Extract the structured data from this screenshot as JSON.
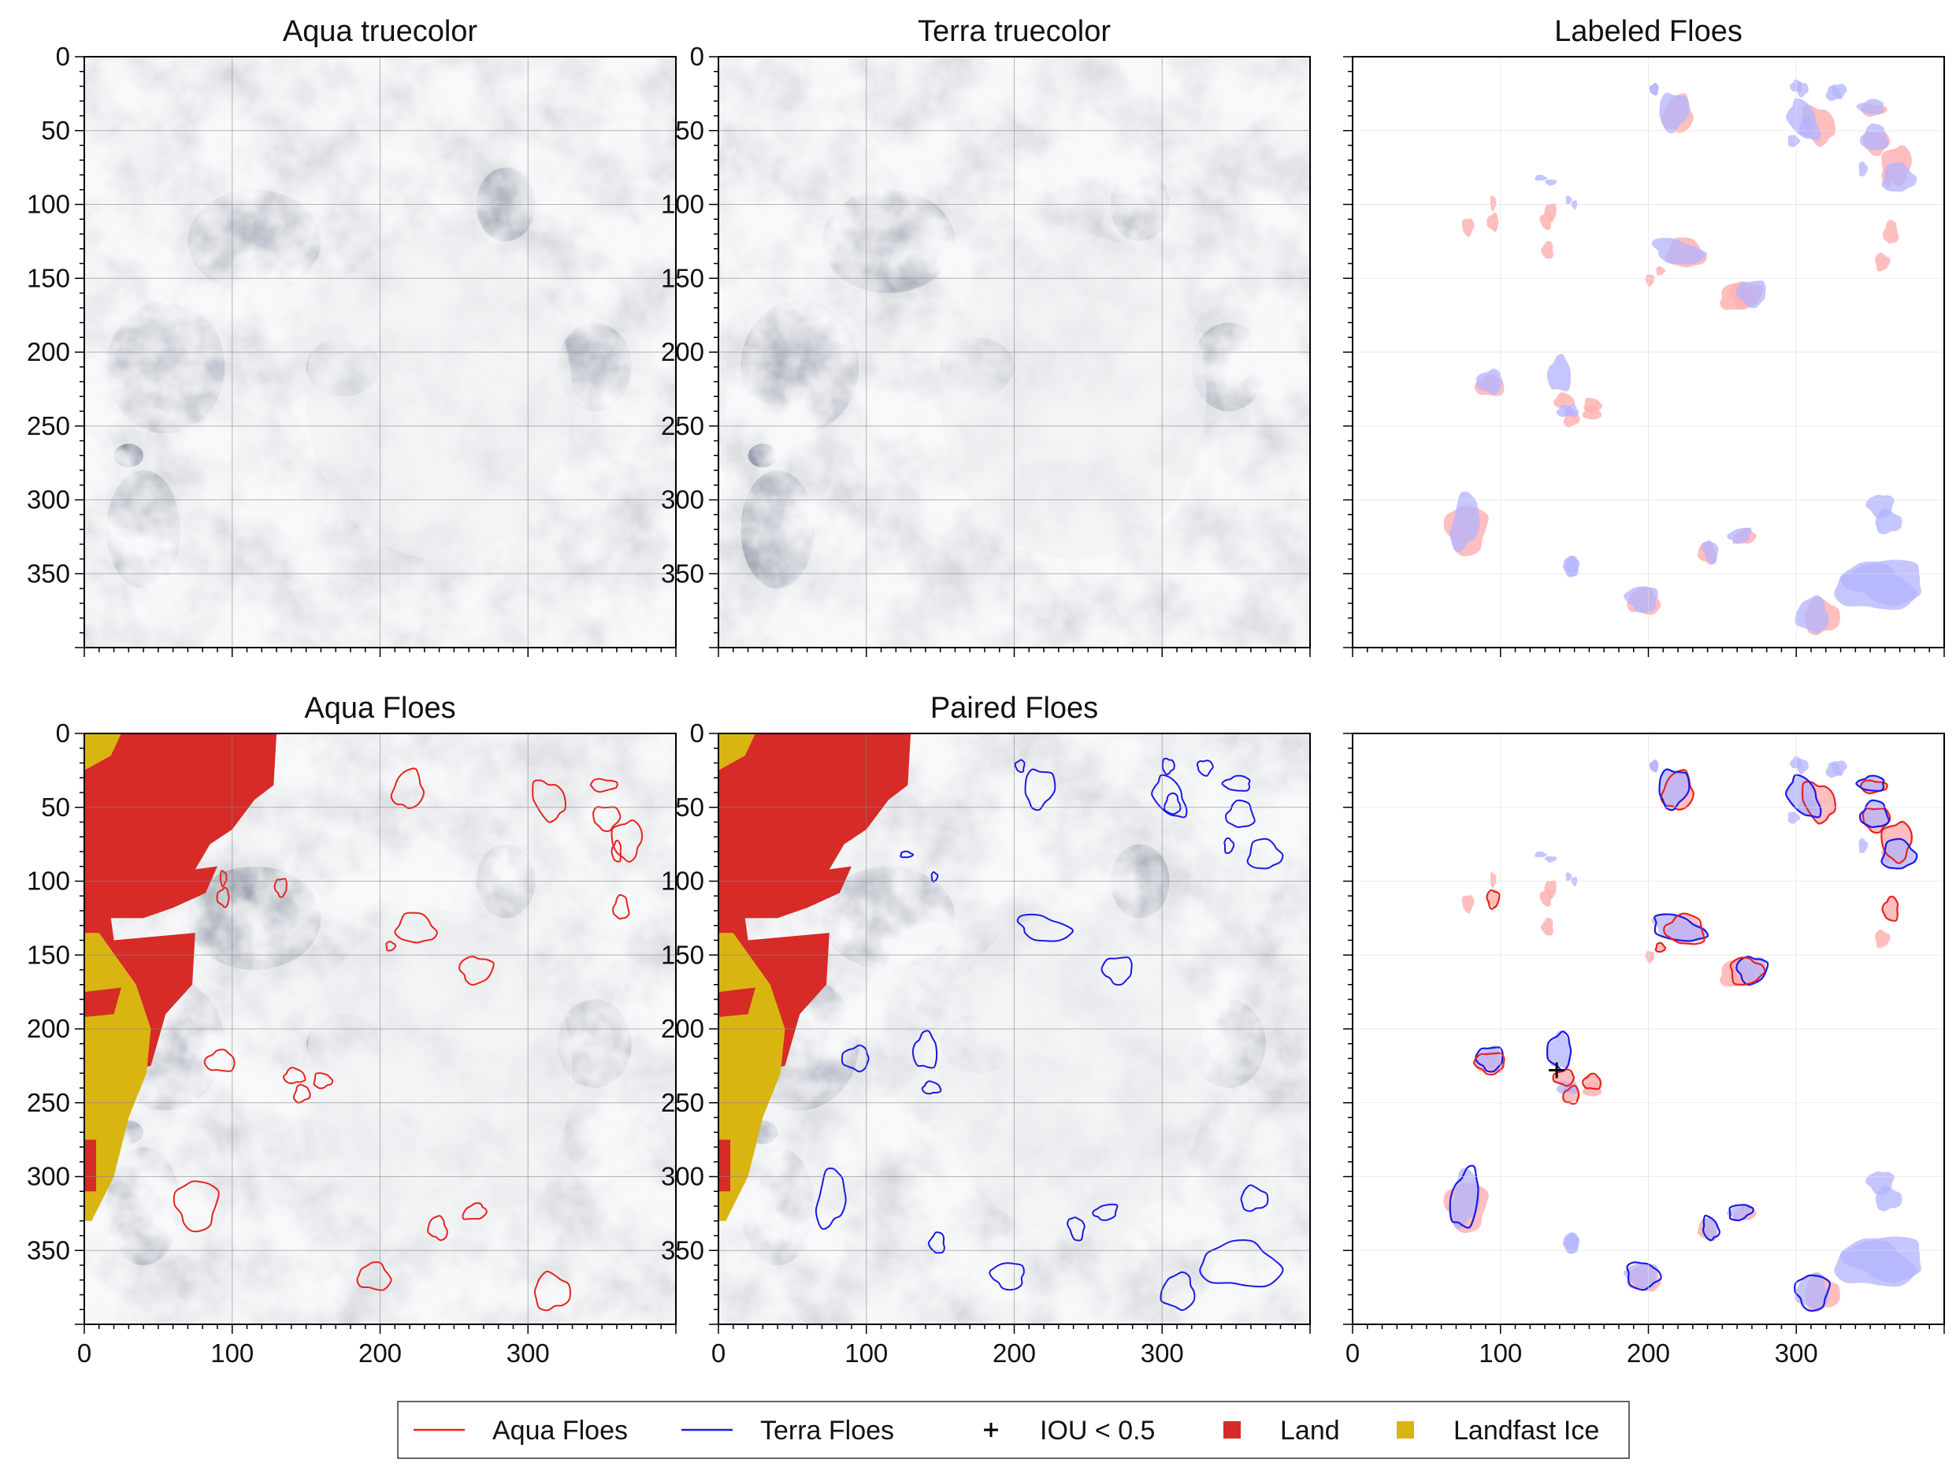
{
  "figure": {
    "panels": [
      {
        "id": "aqua-truecolor",
        "title": "Aqua truecolor",
        "kind": "image",
        "image": "aqua"
      },
      {
        "id": "terra-truecolor",
        "title": "Terra truecolor",
        "kind": "image",
        "image": "terra"
      },
      {
        "id": "labeled-floes",
        "title": "Labeled Floes",
        "kind": "labeled"
      },
      {
        "id": "aqua-floes",
        "title": "Aqua Floes",
        "kind": "aqua-floes"
      },
      {
        "id": "paired-floes",
        "title": "Paired Floes",
        "kind": "paired"
      },
      {
        "id": "overlay-floes",
        "title": "",
        "kind": "overlay"
      }
    ],
    "x_ticks": [
      "0",
      "100",
      "200",
      "300"
    ],
    "y_ticks": [
      "0",
      "50",
      "100",
      "150",
      "200",
      "250",
      "300",
      "350"
    ],
    "axis_range": [
      0,
      400
    ],
    "colors": {
      "aqua": "#e8231e",
      "terra": "#1a1ae6",
      "land": "#d62b27",
      "landfast": "#d9b512",
      "aqua_fill": "#ffb3b3",
      "terra_fill": "#b3b3ff"
    },
    "legend": {
      "items": [
        {
          "label": "Aqua Floes",
          "symbol": "line",
          "color": "#e8231e"
        },
        {
          "label": "Terra Floes",
          "symbol": "line",
          "color": "#1a1ae6"
        },
        {
          "label": "IOU < 0.5",
          "symbol": "plus",
          "color": "#000000"
        },
        {
          "label": "Land",
          "symbol": "square",
          "color": "#d62b27"
        },
        {
          "label": "Landfast Ice",
          "symbol": "square",
          "color": "#d9b512"
        }
      ]
    }
  }
}
